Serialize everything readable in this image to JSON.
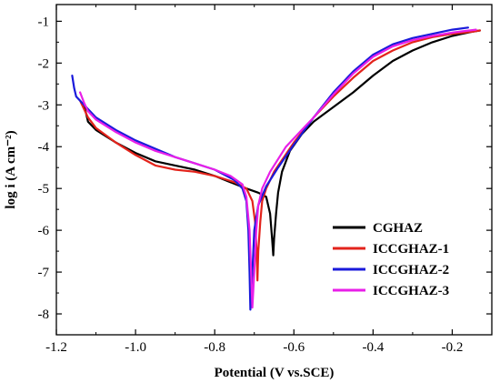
{
  "chart_data": {
    "type": "line",
    "xlabel": "Potential (V vs.SCE)",
    "ylabel": "log i (A cm⁻²)",
    "xlim": [
      -1.2,
      -0.1
    ],
    "ylim": [
      -8.5,
      -0.6
    ],
    "xticks": [
      -1.2,
      -1.0,
      -0.8,
      -0.6,
      -0.4,
      -0.2
    ],
    "xtick_labels": [
      "-1.2",
      "-1.0",
      "-0.8",
      "-0.6",
      "-0.4",
      "-0.2"
    ],
    "yticks": [
      -8,
      -7,
      -6,
      -5,
      -4,
      -3,
      -2,
      -1
    ],
    "ytick_labels": [
      "-8",
      "-7",
      "-6",
      "-5",
      "-4",
      "-3",
      "-2",
      "-1"
    ],
    "legend_position": "lower-right",
    "grid": false,
    "series": [
      {
        "name": "CGHAZ",
        "color": "#000000",
        "x": [
          -1.13,
          -1.12,
          -1.1,
          -1.05,
          -1.0,
          -0.95,
          -0.9,
          -0.85,
          -0.8,
          -0.76,
          -0.72,
          -0.69,
          -0.67,
          -0.66,
          -0.655,
          -0.652,
          -0.65,
          -0.645,
          -0.64,
          -0.63,
          -0.61,
          -0.58,
          -0.55,
          -0.5,
          -0.45,
          -0.4,
          -0.35,
          -0.3,
          -0.25,
          -0.2,
          -0.15,
          -0.13
        ],
        "y": [
          -3.0,
          -3.4,
          -3.6,
          -3.9,
          -4.15,
          -4.35,
          -4.45,
          -4.55,
          -4.7,
          -4.85,
          -5.0,
          -5.1,
          -5.2,
          -5.6,
          -6.2,
          -6.6,
          -6.2,
          -5.6,
          -5.1,
          -4.6,
          -4.1,
          -3.7,
          -3.4,
          -3.05,
          -2.7,
          -2.3,
          -1.95,
          -1.7,
          -1.5,
          -1.35,
          -1.25,
          -1.22
        ]
      },
      {
        "name": "ICCGHAZ-1",
        "color": "#e3231b",
        "x": [
          -1.14,
          -1.12,
          -1.1,
          -1.05,
          -1.0,
          -0.95,
          -0.9,
          -0.85,
          -0.8,
          -0.75,
          -0.72,
          -0.705,
          -0.698,
          -0.694,
          -0.692,
          -0.69,
          -0.685,
          -0.68,
          -0.67,
          -0.65,
          -0.6,
          -0.55,
          -0.5,
          -0.45,
          -0.4,
          -0.35,
          -0.3,
          -0.25,
          -0.2,
          -0.15,
          -0.13
        ],
        "y": [
          -2.9,
          -3.3,
          -3.55,
          -3.9,
          -4.2,
          -4.45,
          -4.55,
          -4.6,
          -4.7,
          -4.85,
          -5.0,
          -5.3,
          -5.8,
          -6.5,
          -7.2,
          -6.5,
          -5.8,
          -5.3,
          -5.0,
          -4.6,
          -3.9,
          -3.3,
          -2.8,
          -2.35,
          -1.95,
          -1.7,
          -1.5,
          -1.38,
          -1.3,
          -1.25,
          -1.22
        ]
      },
      {
        "name": "ICCGHAZ-2",
        "color": "#1a1adb",
        "x": [
          -1.16,
          -1.155,
          -1.15,
          -1.1,
          -1.05,
          -1.0,
          -0.95,
          -0.9,
          -0.85,
          -0.8,
          -0.75,
          -0.73,
          -0.72,
          -0.715,
          -0.712,
          -0.71,
          -0.705,
          -0.7,
          -0.69,
          -0.67,
          -0.64,
          -0.6,
          -0.55,
          -0.5,
          -0.45,
          -0.4,
          -0.35,
          -0.3,
          -0.25,
          -0.2,
          -0.16
        ],
        "y": [
          -2.3,
          -2.6,
          -2.8,
          -3.3,
          -3.6,
          -3.85,
          -4.05,
          -4.25,
          -4.4,
          -4.55,
          -4.8,
          -5.0,
          -5.3,
          -6.0,
          -7.0,
          -7.9,
          -7.0,
          -6.0,
          -5.4,
          -4.95,
          -4.5,
          -3.95,
          -3.3,
          -2.7,
          -2.2,
          -1.8,
          -1.55,
          -1.4,
          -1.3,
          -1.2,
          -1.15
        ]
      },
      {
        "name": "ICCGHAZ-3",
        "color": "#e81fe8",
        "x": [
          -1.14,
          -1.13,
          -1.12,
          -1.1,
          -1.05,
          -1.0,
          -0.95,
          -0.9,
          -0.85,
          -0.8,
          -0.76,
          -0.73,
          -0.72,
          -0.712,
          -0.708,
          -0.705,
          -0.7,
          -0.695,
          -0.69,
          -0.68,
          -0.66,
          -0.62,
          -0.58,
          -0.55,
          -0.5,
          -0.45,
          -0.4,
          -0.35,
          -0.3,
          -0.25,
          -0.2,
          -0.14
        ],
        "y": [
          -2.7,
          -2.95,
          -3.15,
          -3.35,
          -3.65,
          -3.9,
          -4.1,
          -4.25,
          -4.4,
          -4.55,
          -4.7,
          -4.9,
          -5.2,
          -6.0,
          -7.0,
          -7.85,
          -7.0,
          -6.0,
          -5.4,
          -5.0,
          -4.6,
          -4.0,
          -3.6,
          -3.3,
          -2.75,
          -2.25,
          -1.85,
          -1.6,
          -1.45,
          -1.35,
          -1.27,
          -1.2
        ]
      }
    ]
  }
}
